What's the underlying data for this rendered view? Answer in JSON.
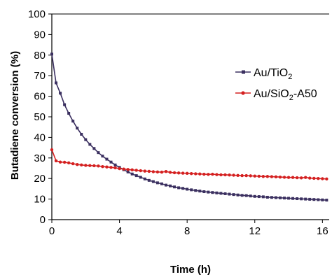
{
  "chart_data": {
    "type": "line",
    "xlabel": "Time (h)",
    "ylabel": "Butadiene conversion (%)",
    "xlim": [
      0,
      16.4
    ],
    "ylim": [
      0,
      100
    ],
    "x_ticks": [
      0,
      4,
      8,
      12,
      16
    ],
    "x_tick_labels": [
      "0",
      "4",
      "8",
      "12",
      "16"
    ],
    "y_ticks": [
      0,
      10,
      20,
      30,
      40,
      50,
      60,
      70,
      80,
      90,
      100
    ],
    "y_tick_labels": [
      "0",
      "10",
      "20",
      "30",
      "40",
      "50",
      "60",
      "70",
      "80",
      "90",
      "100"
    ],
    "grid": false,
    "legend_position": "right",
    "series": [
      {
        "name": "Au/TiO",
        "name_subscript": "2",
        "color": "#3b3060",
        "marker": "square",
        "x": [
          0.0,
          0.25,
          0.5,
          0.75,
          1.0,
          1.25,
          1.5,
          1.75,
          2.0,
          2.25,
          2.5,
          2.75,
          3.0,
          3.25,
          3.5,
          3.75,
          4.0,
          4.25,
          4.5,
          4.75,
          5.0,
          5.25,
          5.5,
          5.75,
          6.0,
          6.25,
          6.5,
          6.75,
          7.0,
          7.25,
          7.5,
          7.75,
          8.0,
          8.25,
          8.5,
          8.75,
          9.0,
          9.25,
          9.5,
          9.75,
          10.0,
          10.25,
          10.5,
          10.75,
          11.0,
          11.25,
          11.5,
          11.75,
          12.0,
          12.25,
          12.5,
          12.75,
          13.0,
          13.25,
          13.5,
          13.75,
          14.0,
          14.25,
          14.5,
          14.75,
          15.0,
          15.25,
          15.5,
          15.75,
          16.0,
          16.25
        ],
        "y": [
          80.5,
          66.5,
          61.5,
          55.9,
          51.7,
          47.9,
          44.5,
          41.5,
          38.9,
          36.6,
          34.6,
          32.6,
          30.9,
          29.4,
          28.0,
          26.6,
          25.4,
          24.3,
          23.2,
          22.2,
          21.4,
          20.6,
          19.8,
          19.1,
          18.5,
          17.9,
          17.4,
          16.8,
          16.4,
          15.9,
          15.5,
          15.2,
          14.8,
          14.5,
          14.2,
          13.9,
          13.6,
          13.4,
          13.2,
          13.0,
          12.8,
          12.6,
          12.4,
          12.2,
          12.0,
          11.8,
          11.7,
          11.5,
          11.3,
          11.2,
          11.1,
          10.9,
          10.8,
          10.7,
          10.6,
          10.5,
          10.4,
          10.3,
          10.2,
          10.1,
          10.0,
          9.9,
          9.8,
          9.7,
          9.6,
          9.5
        ]
      },
      {
        "name": "Au/SiO",
        "name_subscript": "2",
        "name_suffix": "-A50",
        "color": "#d42020",
        "marker": "circle",
        "x": [
          0.0,
          0.25,
          0.5,
          0.75,
          1.0,
          1.25,
          1.5,
          1.75,
          2.0,
          2.25,
          2.5,
          2.75,
          3.0,
          3.25,
          3.5,
          3.75,
          4.0,
          4.25,
          4.5,
          4.75,
          5.0,
          5.25,
          5.5,
          5.75,
          6.0,
          6.25,
          6.5,
          6.75,
          7.0,
          7.25,
          7.5,
          7.75,
          8.0,
          8.25,
          8.5,
          8.75,
          9.0,
          9.25,
          9.5,
          9.75,
          10.0,
          10.25,
          10.5,
          10.75,
          11.0,
          11.25,
          11.5,
          11.75,
          12.0,
          12.25,
          12.5,
          12.75,
          13.0,
          13.25,
          13.5,
          13.75,
          14.0,
          14.25,
          14.5,
          14.75,
          15.0,
          15.25,
          15.5,
          15.75,
          16.0,
          16.25
        ],
        "y": [
          34.0,
          28.6,
          28.0,
          27.9,
          27.6,
          27.2,
          26.8,
          26.6,
          26.4,
          26.3,
          26.2,
          26.1,
          25.8,
          25.6,
          25.4,
          25.2,
          24.8,
          24.6,
          24.4,
          24.2,
          24.0,
          23.8,
          23.6,
          23.5,
          23.3,
          23.2,
          23.1,
          23.4,
          23.0,
          22.8,
          22.7,
          22.6,
          22.5,
          22.4,
          22.3,
          22.2,
          22.1,
          22.0,
          22.1,
          21.9,
          21.8,
          21.8,
          21.7,
          21.6,
          21.5,
          21.4,
          21.4,
          21.3,
          21.2,
          21.1,
          21.0,
          21.0,
          20.9,
          20.8,
          20.7,
          20.6,
          20.5,
          20.5,
          20.4,
          20.3,
          20.5,
          20.2,
          20.1,
          20.0,
          19.9,
          19.8
        ]
      }
    ]
  }
}
